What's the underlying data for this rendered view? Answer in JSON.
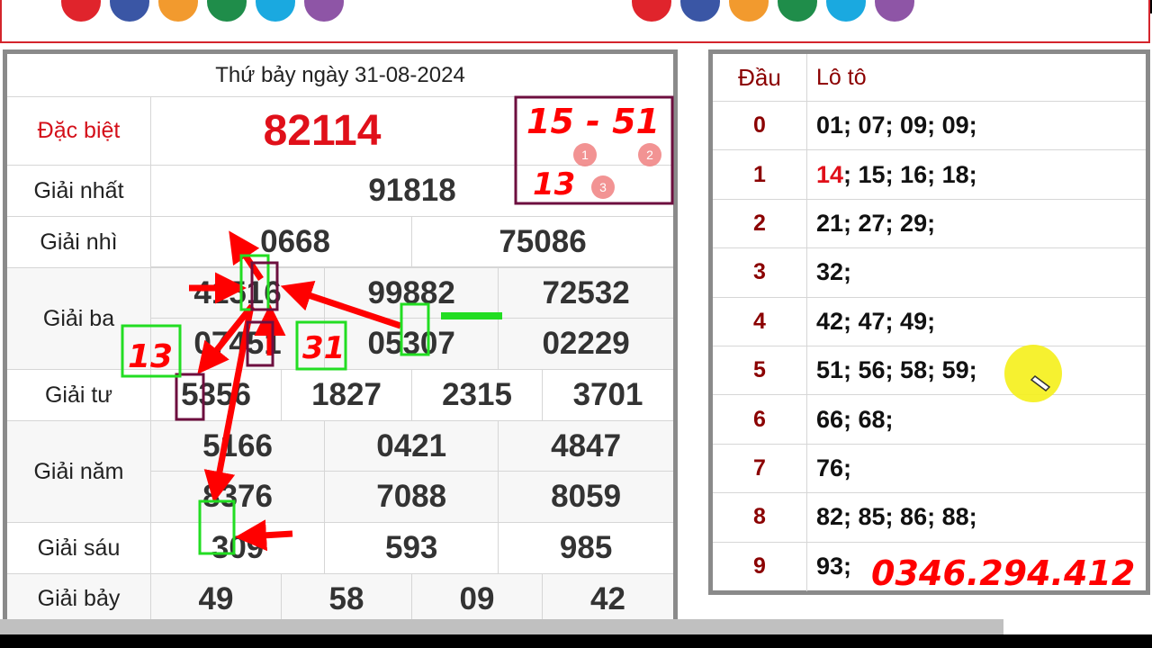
{
  "banner": {
    "dot_colors": [
      "#e0242c",
      "#3a56a5",
      "#f29a2e",
      "#1f8d4a",
      "#1aa9e0",
      "#8e55a6"
    ]
  },
  "results": {
    "title": "Thứ bảy ngày 31-08-2024",
    "prizes": [
      {
        "label": "Giải nhất",
        "numbers": [
          "91818"
        ]
      },
      {
        "label": "Giải nhì",
        "numbers": [
          "0668",
          "75086"
        ]
      },
      {
        "label": "Giải ba",
        "numbers": [
          "41516",
          "99882",
          "72532",
          "07451",
          "05307",
          "02229"
        ]
      },
      {
        "label": "Giải tư",
        "numbers": [
          "5356",
          "1827",
          "2315",
          "3701"
        ]
      },
      {
        "label": "Giải năm",
        "numbers": [
          "5166",
          "0421",
          "4847",
          "8376",
          "7088",
          "8059"
        ]
      },
      {
        "label": "Giải sáu",
        "numbers": [
          "309",
          "593",
          "985"
        ]
      },
      {
        "label": "Giải bảy",
        "numbers": [
          "49",
          "58",
          "09",
          "42"
        ]
      }
    ],
    "special": {
      "label": "Đặc biệt",
      "number": "82114"
    }
  },
  "loto": {
    "head_label": "Đầu",
    "value_label": "Lô tô",
    "rows": [
      {
        "head": "0",
        "values": "01; 07; 09; 09;"
      },
      {
        "head": "1",
        "highlight": "14",
        "values": "; 15; 16; 18;"
      },
      {
        "head": "2",
        "values": "21; 27; 29;"
      },
      {
        "head": "3",
        "values": "32;"
      },
      {
        "head": "4",
        "values": "42; 47; 49;"
      },
      {
        "head": "5",
        "values": "51; 56; 58; 59;"
      },
      {
        "head": "6",
        "values": "66; 68;"
      },
      {
        "head": "7",
        "values": "76;"
      },
      {
        "head": "8",
        "values": "82; 85; 86; 88;"
      },
      {
        "head": "9",
        "values": "93;"
      }
    ]
  },
  "annotations": {
    "pair": "15 - 51",
    "extra": "13",
    "badges": [
      "1",
      "2",
      "3"
    ],
    "left_note": "13",
    "mid_note": "31",
    "phone": "0346.294.412"
  }
}
